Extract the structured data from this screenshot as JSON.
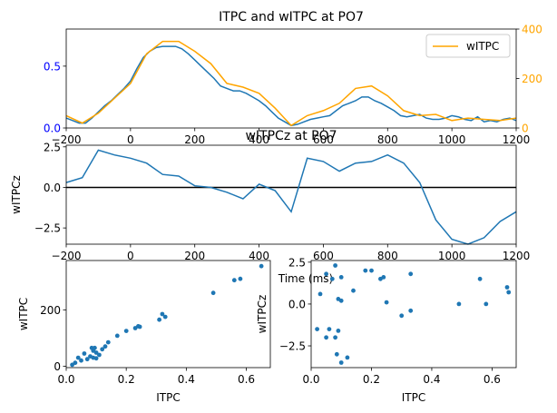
{
  "chart_data": [
    {
      "type": "line",
      "title": "ITPC and wITPC at PO7",
      "xlim": [
        -200,
        1200
      ],
      "xticks": [
        -200,
        0,
        200,
        400,
        600,
        800,
        1000,
        1200
      ],
      "left_axis": {
        "ylim": [
          0,
          0.8
        ],
        "yticks": [
          0,
          0.5
        ],
        "color": "#0000ff"
      },
      "right_axis": {
        "ylim": [
          0,
          400
        ],
        "yticks": [
          0,
          200,
          400
        ],
        "color": "#ffa500"
      },
      "legend": "top-right",
      "series": [
        {
          "name": "",
          "axis": "left",
          "color": "#1f77b4",
          "x": [
            -200,
            -180,
            -160,
            -140,
            -120,
            -100,
            -80,
            -60,
            -40,
            -20,
            0,
            20,
            40,
            60,
            80,
            100,
            120,
            140,
            160,
            180,
            200,
            220,
            240,
            260,
            280,
            300,
            320,
            340,
            360,
            380,
            400,
            420,
            440,
            460,
            480,
            500,
            520,
            540,
            560,
            580,
            600,
            620,
            640,
            660,
            680,
            700,
            720,
            740,
            760,
            780,
            800,
            820,
            840,
            860,
            880,
            900,
            920,
            940,
            960,
            980,
            1000,
            1020,
            1040,
            1060,
            1080,
            1100,
            1120,
            1140,
            1160,
            1180,
            1200
          ],
          "y": [
            0.08,
            0.06,
            0.04,
            0.04,
            0.08,
            0.13,
            0.18,
            0.22,
            0.27,
            0.32,
            0.38,
            0.48,
            0.57,
            0.62,
            0.65,
            0.66,
            0.66,
            0.66,
            0.64,
            0.6,
            0.55,
            0.5,
            0.45,
            0.4,
            0.34,
            0.32,
            0.3,
            0.3,
            0.28,
            0.25,
            0.22,
            0.18,
            0.13,
            0.08,
            0.05,
            0.02,
            0.03,
            0.05,
            0.07,
            0.08,
            0.09,
            0.1,
            0.14,
            0.18,
            0.2,
            0.22,
            0.25,
            0.25,
            0.22,
            0.2,
            0.17,
            0.14,
            0.1,
            0.09,
            0.1,
            0.11,
            0.08,
            0.07,
            0.07,
            0.08,
            0.1,
            0.09,
            0.07,
            0.06,
            0.09,
            0.05,
            0.06,
            0.05,
            0.07,
            0.08,
            0.06
          ]
        },
        {
          "name": "wITPC",
          "axis": "right",
          "color": "#ffa500",
          "x": [
            -200,
            -150,
            -100,
            -50,
            0,
            50,
            100,
            150,
            200,
            250,
            300,
            350,
            400,
            450,
            500,
            550,
            600,
            650,
            700,
            750,
            800,
            850,
            900,
            950,
            1000,
            1050,
            1100,
            1150,
            1200
          ],
          "y": [
            50,
            20,
            60,
            120,
            180,
            300,
            350,
            350,
            310,
            260,
            180,
            165,
            140,
            80,
            10,
            50,
            70,
            100,
            160,
            170,
            130,
            70,
            50,
            55,
            30,
            40,
            35,
            30,
            40
          ]
        }
      ]
    },
    {
      "type": "line",
      "title": "wITPCz at PO7",
      "xlabel": "Time (ms)",
      "ylabel": "wITPCz",
      "xlim": [
        -200,
        1200
      ],
      "ylim": [
        -3.5,
        2.6
      ],
      "xticks": [
        -200,
        0,
        200,
        400,
        600,
        800,
        1000,
        1200
      ],
      "yticks": [
        2.5,
        0.0,
        -2.5
      ],
      "ytick_labels": [
        "2.5",
        "0.0",
        "−2.5"
      ],
      "hline": 0,
      "series": [
        {
          "name": "",
          "color": "#1f77b4",
          "x": [
            -200,
            -150,
            -100,
            -50,
            0,
            50,
            100,
            150,
            200,
            250,
            300,
            350,
            400,
            450,
            500,
            550,
            600,
            650,
            700,
            750,
            800,
            850,
            900,
            950,
            1000,
            1050,
            1100,
            1150,
            1200
          ],
          "y": [
            0.3,
            0.6,
            2.3,
            2.0,
            1.8,
            1.5,
            0.8,
            0.7,
            0.1,
            0.0,
            -0.3,
            -0.7,
            0.2,
            -0.2,
            -1.5,
            1.8,
            1.6,
            1.0,
            1.5,
            1.6,
            2.0,
            1.5,
            0.3,
            -2.0,
            -3.2,
            -3.5,
            -3.1,
            -2.1,
            -1.5
          ]
        }
      ]
    },
    {
      "type": "scatter",
      "xlabel": "ITPC",
      "ylabel": "wITPC",
      "xlim": [
        0,
        0.68
      ],
      "ylim": [
        -5,
        375
      ],
      "xticks": [
        0.0,
        0.2,
        0.4,
        0.6
      ],
      "yticks": [
        0,
        200
      ],
      "color": "#1f77b4",
      "points": [
        [
          0.02,
          5
        ],
        [
          0.03,
          12
        ],
        [
          0.04,
          30
        ],
        [
          0.05,
          20
        ],
        [
          0.06,
          45
        ],
        [
          0.07,
          25
        ],
        [
          0.08,
          35
        ],
        [
          0.085,
          65
        ],
        [
          0.09,
          55
        ],
        [
          0.09,
          30
        ],
        [
          0.095,
          65
        ],
        [
          0.1,
          48
        ],
        [
          0.1,
          28
        ],
        [
          0.11,
          40
        ],
        [
          0.12,
          60
        ],
        [
          0.13,
          70
        ],
        [
          0.14,
          85
        ],
        [
          0.17,
          108
        ],
        [
          0.2,
          125
        ],
        [
          0.23,
          135
        ],
        [
          0.24,
          142
        ],
        [
          0.245,
          140
        ],
        [
          0.31,
          165
        ],
        [
          0.32,
          185
        ],
        [
          0.33,
          175
        ],
        [
          0.49,
          260
        ],
        [
          0.56,
          305
        ],
        [
          0.58,
          310
        ],
        [
          0.65,
          355
        ]
      ]
    },
    {
      "type": "scatter",
      "xlabel": "ITPC",
      "ylabel": "wITPCz",
      "xlim": [
        0,
        0.68
      ],
      "ylim": [
        -3.8,
        2.6
      ],
      "xticks": [
        0.0,
        0.2,
        0.4,
        0.6
      ],
      "yticks": [
        2.5,
        0.0,
        -2.5
      ],
      "ytick_labels": [
        "2.5",
        "0.0",
        "−2.5"
      ],
      "color": "#1f77b4",
      "points": [
        [
          0.02,
          -1.5
        ],
        [
          0.03,
          0.6
        ],
        [
          0.05,
          1.8
        ],
        [
          0.05,
          -2.0
        ],
        [
          0.06,
          -1.5
        ],
        [
          0.07,
          1.5
        ],
        [
          0.08,
          -2.0
        ],
        [
          0.08,
          2.3
        ],
        [
          0.085,
          -3.0
        ],
        [
          0.09,
          -1.6
        ],
        [
          0.09,
          0.3
        ],
        [
          0.1,
          1.6
        ],
        [
          0.1,
          0.2
        ],
        [
          0.1,
          -3.5
        ],
        [
          0.12,
          -3.2
        ],
        [
          0.14,
          0.8
        ],
        [
          0.18,
          2.0
        ],
        [
          0.2,
          2.0
        ],
        [
          0.23,
          1.5
        ],
        [
          0.24,
          1.6
        ],
        [
          0.25,
          0.1
        ],
        [
          0.3,
          -0.7
        ],
        [
          0.33,
          1.8
        ],
        [
          0.33,
          -0.4
        ],
        [
          0.49,
          0.0
        ],
        [
          0.56,
          1.5
        ],
        [
          0.58,
          0.0
        ],
        [
          0.65,
          1.0
        ],
        [
          0.655,
          0.7
        ]
      ]
    }
  ]
}
